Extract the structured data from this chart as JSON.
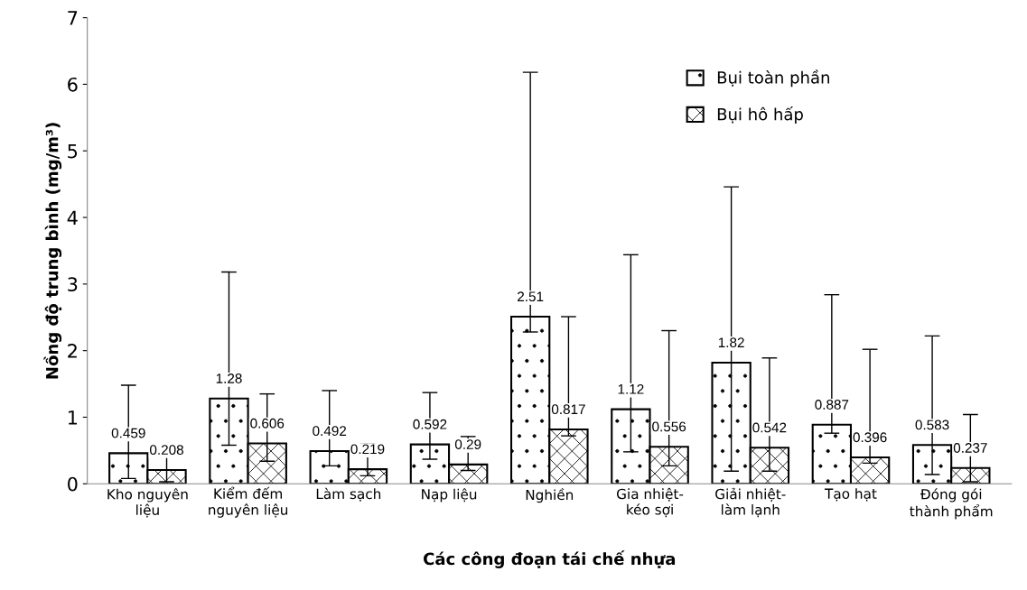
{
  "chart_data": {
    "type": "bar",
    "xlabel": "Các công đoạn tái chế nhựa",
    "ylabel": "Nồng độ trung bình (mg/m³)",
    "categories": [
      "Kho nguyên\nliệu",
      "Kiểm đếm\nnguyên liệu",
      "Làm sạch",
      "Nạp liệu",
      "Nghiền",
      "Gia nhiệt-\nkéo sợi",
      "Giải nhiệt-\nlàm lạnh",
      "Tạo hạt",
      "Đóng gói\nthành phẩm"
    ],
    "series": [
      {
        "name": "Bụi toàn phần",
        "color": "#000000",
        "values": [
          0.459,
          1.28,
          0.492,
          0.592,
          2.51,
          1.12,
          1.82,
          0.887,
          0.583
        ],
        "errors": [
          [
            0.08,
            1.48
          ],
          [
            0.58,
            3.18
          ],
          [
            0.27,
            1.4
          ],
          [
            0.37,
            1.37
          ],
          [
            2.28,
            6.18
          ],
          [
            0.48,
            3.44
          ],
          [
            0.19,
            4.46
          ],
          [
            0.76,
            2.84
          ],
          [
            0.14,
            2.22
          ]
        ]
      },
      {
        "name": "Bụi hô hấp",
        "color": "#000000",
        "values": [
          0.208,
          0.606,
          0.219,
          0.29,
          0.817,
          0.556,
          0.542,
          0.396,
          0.237
        ],
        "errors": [
          [
            0.03,
            0.42
          ],
          [
            0.34,
            1.35
          ],
          [
            0.12,
            0.6
          ],
          [
            0.2,
            0.71
          ],
          [
            0.72,
            2.51
          ],
          [
            0.27,
            2.3
          ],
          [
            0.19,
            1.89
          ],
          [
            0.31,
            2.02
          ],
          [
            0.03,
            1.04
          ]
        ]
      }
    ],
    "ylim": [
      0,
      7
    ],
    "yticks": [
      0,
      1,
      2,
      3,
      4,
      5,
      6,
      7
    ],
    "grid": false,
    "legend": "top right",
    "data_labels": true
  }
}
